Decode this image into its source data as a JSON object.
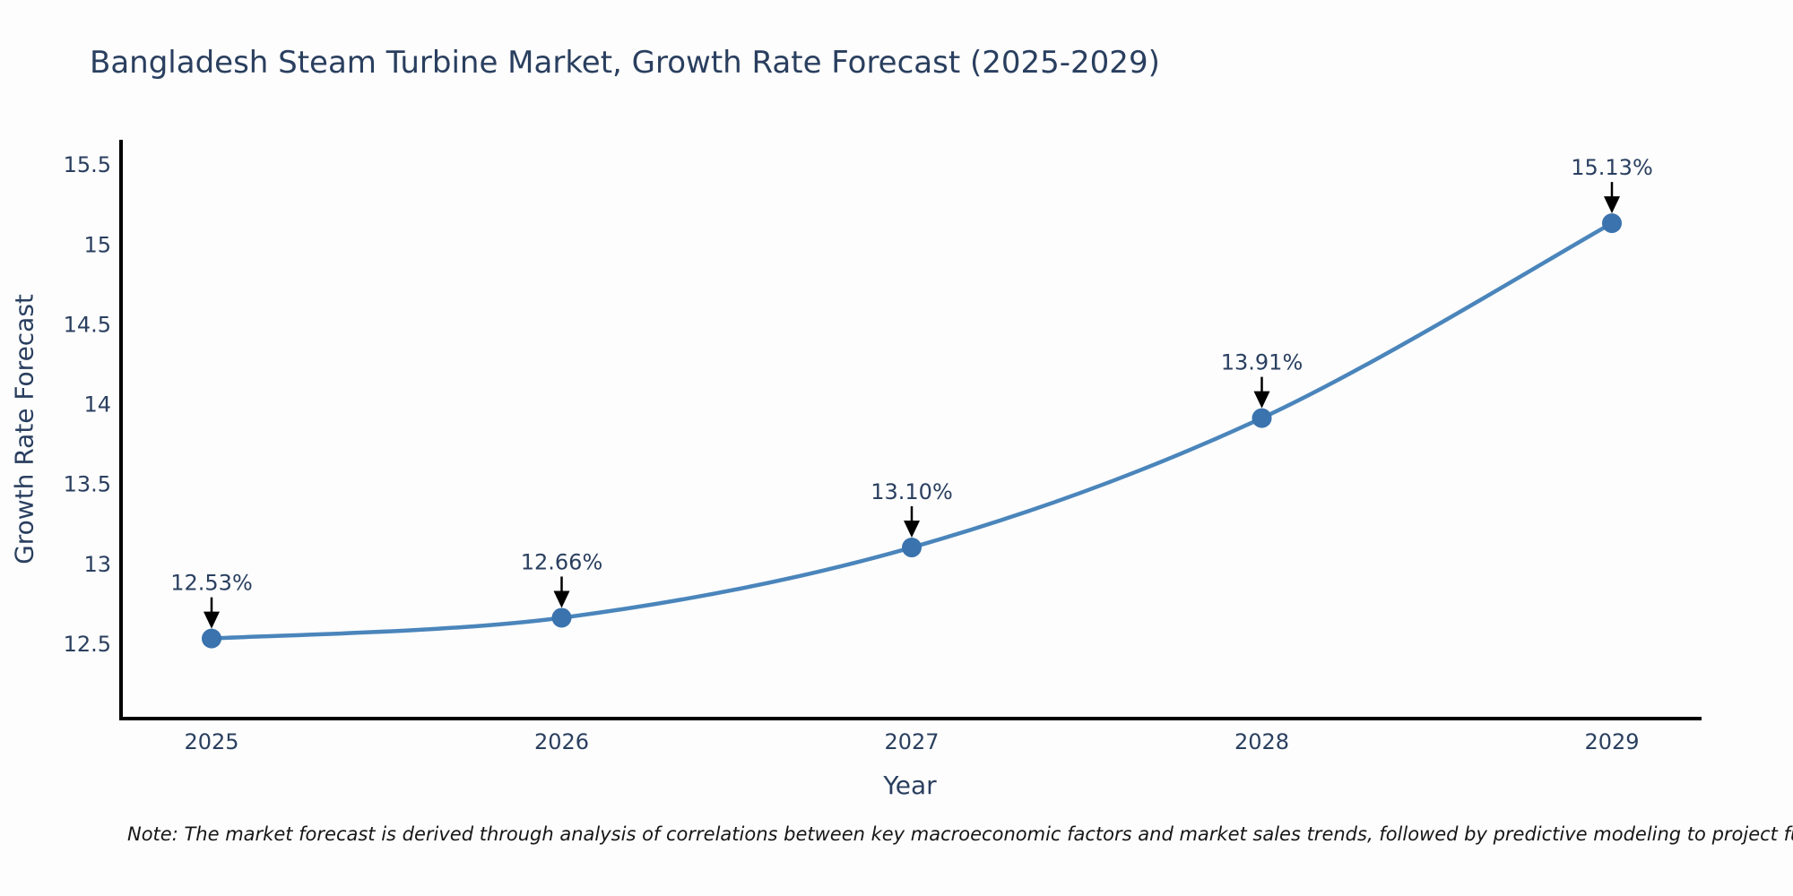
{
  "page": {
    "background": "#fdfdfd"
  },
  "note": "Note: The market forecast is derived through analysis of correlations between key macroeconomic factors and market sales trends, followed by predictive modeling to project future sal",
  "chart_data": {
    "type": "line",
    "title": "Bangladesh Steam Turbine Market, Growth Rate Forecast (2025-2029)",
    "xlabel": "Year",
    "ylabel": "Growth Rate Forecast",
    "categories": [
      "2025",
      "2026",
      "2027",
      "2028",
      "2029"
    ],
    "values": [
      12.53,
      12.66,
      13.1,
      13.91,
      15.13
    ],
    "point_labels": [
      "12.53%",
      "12.66%",
      "13.10%",
      "13.91%",
      "15.13%"
    ],
    "yticks": [
      12.5,
      13,
      13.5,
      14,
      14.5,
      15,
      15.5
    ],
    "ytick_labels": [
      "12.5",
      "13",
      "13.5",
      "14",
      "14.5",
      "15",
      "15.5"
    ],
    "ylim": [
      12.04,
      15.63
    ],
    "grid": false,
    "legend": null,
    "smooth": true,
    "line_color": "#4a85bb",
    "marker_color": "#3a73ad",
    "arrow_color": "#000000",
    "axis_color": "#000000",
    "label_color": "#2a3f5f",
    "tick_color": "#2a3f5f"
  }
}
